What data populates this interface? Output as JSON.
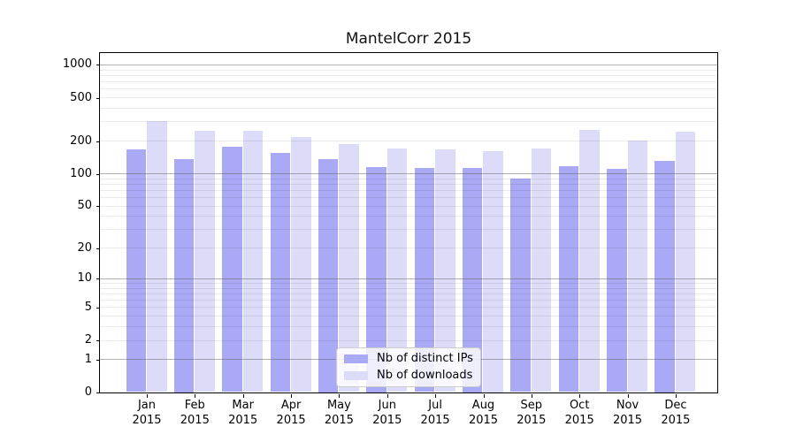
{
  "chart_data": {
    "type": "bar",
    "title": "MantelCorr 2015",
    "categories": [
      {
        "month": "Jan",
        "year": "2015"
      },
      {
        "month": "Feb",
        "year": "2015"
      },
      {
        "month": "Mar",
        "year": "2015"
      },
      {
        "month": "Apr",
        "year": "2015"
      },
      {
        "month": "May",
        "year": "2015"
      },
      {
        "month": "Jun",
        "year": "2015"
      },
      {
        "month": "Jul",
        "year": "2015"
      },
      {
        "month": "Aug",
        "year": "2015"
      },
      {
        "month": "Sep",
        "year": "2015"
      },
      {
        "month": "Oct",
        "year": "2015"
      },
      {
        "month": "Nov",
        "year": "2015"
      },
      {
        "month": "Dec",
        "year": "2015"
      }
    ],
    "series": [
      {
        "name": "Nb of distinct IPs",
        "color": "#a9a9f6",
        "values": [
          165,
          135,
          175,
          155,
          135,
          115,
          112,
          113,
          90,
          117,
          110,
          130
        ]
      },
      {
        "name": "Nb of downloads",
        "color": "#dcdcf9",
        "values": [
          300,
          245,
          245,
          215,
          185,
          170,
          165,
          160,
          170,
          250,
          200,
          240
        ]
      }
    ],
    "y_axis": {
      "scale": "log1p",
      "ticks": [
        0,
        1,
        2,
        5,
        10,
        20,
        50,
        100,
        200,
        500,
        1000
      ],
      "max": 1280,
      "major_gridline_values": [
        1,
        10,
        100,
        1000
      ],
      "minor_gridline_values": [
        2,
        3,
        4,
        5,
        6,
        7,
        8,
        9,
        20,
        30,
        40,
        50,
        60,
        70,
        80,
        90,
        200,
        300,
        400,
        500,
        600,
        700,
        800,
        900
      ]
    },
    "legend": {
      "position": "inside-bottom-center"
    },
    "grid": true,
    "colors": {
      "axis": "#000000",
      "major_grid": "#b2b2b2",
      "minor_grid": "#eaeaea"
    }
  }
}
